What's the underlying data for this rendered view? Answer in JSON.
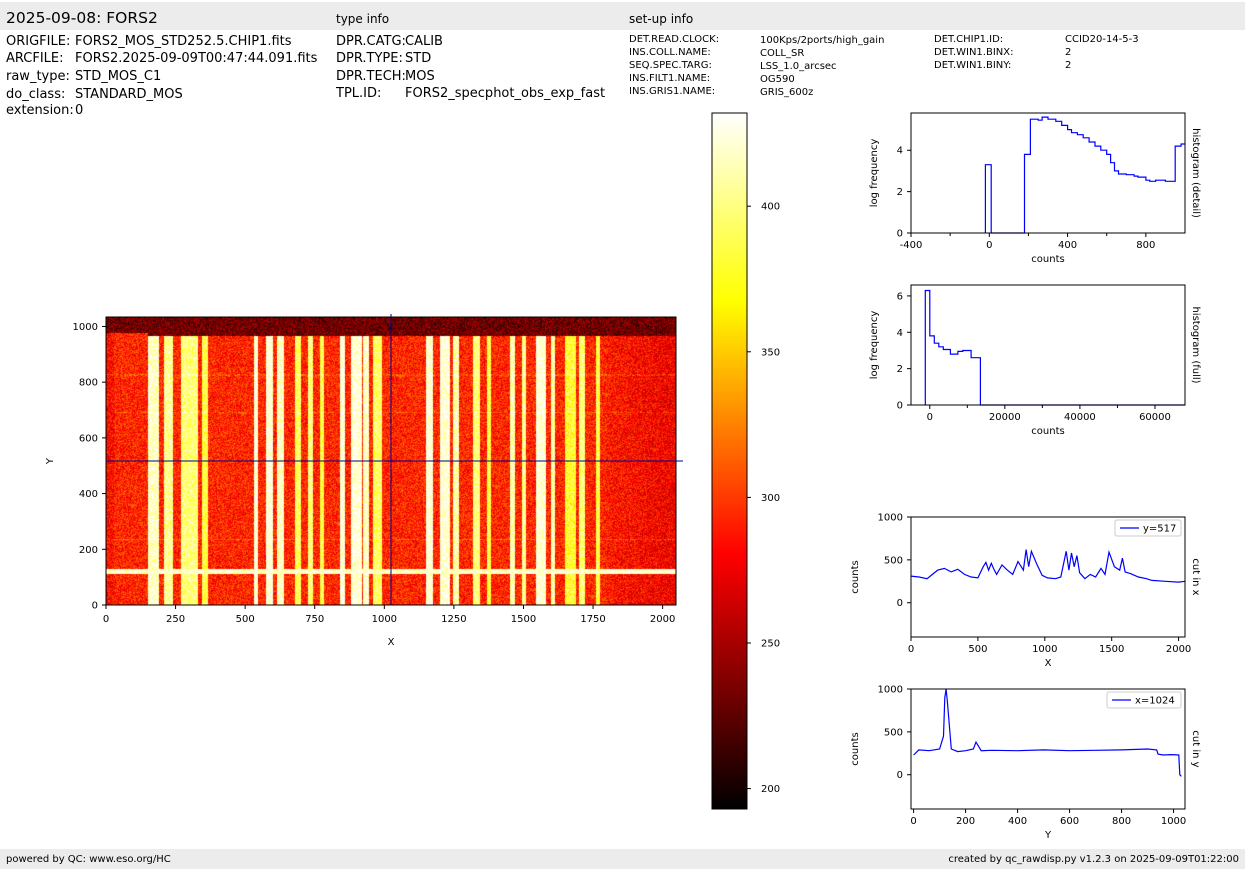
{
  "header": {
    "title": "2025-09-08: FORS2",
    "type_info_label": "type info",
    "setup_info_label": "set-up info"
  },
  "file_info": [
    {
      "key": "ORIGFILE:",
      "value": "FORS2_MOS_STD252.5.CHIP1.fits"
    },
    {
      "key": "ARCFILE:",
      "value": "FORS2.2025-09-09T00:47:44.091.fits"
    },
    {
      "key": "raw_type:",
      "value": "STD_MOS_C1"
    },
    {
      "key": "do_class:",
      "value": "STANDARD_MOS"
    },
    {
      "key": "extension:",
      "value": "0"
    }
  ],
  "type_info": [
    {
      "key": "DPR.CATG:",
      "value": "CALIB"
    },
    {
      "key": "DPR.TYPE:",
      "value": "STD"
    },
    {
      "key": "DPR.TECH:",
      "value": "MOS"
    },
    {
      "key": "TPL.ID:",
      "value": "FORS2_specphot_obs_exp_fast"
    }
  ],
  "setup_info_a": [
    {
      "key": "DET.READ.CLOCK:",
      "value": "100Kps/2ports/high_gain"
    },
    {
      "key": "INS.COLL.NAME:",
      "value": "COLL_SR"
    },
    {
      "key": "SEQ.SPEC.TARG:",
      "value": "LSS_1.0_arcsec"
    },
    {
      "key": "INS.FILT1.NAME:",
      "value": "OG590"
    },
    {
      "key": "INS.GRIS1.NAME:",
      "value": "GRIS_600z"
    }
  ],
  "setup_info_b": [
    {
      "key": "DET.CHIP1.ID:",
      "value": "CCID20-14-5-3"
    },
    {
      "key": "DET.WIN1.BINX:",
      "value": "2"
    },
    {
      "key": "DET.WIN1.BINY:",
      "value": "2"
    }
  ],
  "footer": {
    "left": "powered by QC: www.eso.org/HC",
    "right": "created by qc_rawdisp.py v1.2.3 on 2025-09-09T01:22:00"
  },
  "colors": {
    "line": "#0000ff",
    "crosshair": "#00008b",
    "header_bg": "#ececec"
  },
  "chart_data": [
    {
      "type": "heatmap",
      "name": "raw image",
      "xlabel": "X",
      "ylabel": "Y",
      "xlim": [
        0,
        2048
      ],
      "ylim": [
        0,
        1034
      ],
      "xticks": [
        0,
        250,
        500,
        750,
        1000,
        1250,
        1500,
        1750,
        2000
      ],
      "yticks": [
        0,
        200,
        400,
        600,
        800,
        1000
      ],
      "crosshair": {
        "x": 1024,
        "y": 517
      },
      "colormap": "hot",
      "bright_columns": [
        [
          150,
          190,
          0.95
        ],
        [
          210,
          240,
          0.85
        ],
        [
          270,
          330,
          0.8
        ],
        [
          345,
          365,
          0.7
        ],
        [
          530,
          545,
          1.0
        ],
        [
          575,
          600,
          1.0
        ],
        [
          615,
          640,
          0.95
        ],
        [
          680,
          700,
          0.75
        ],
        [
          725,
          745,
          0.8
        ],
        [
          770,
          785,
          0.7
        ],
        [
          840,
          860,
          1.0
        ],
        [
          880,
          920,
          1.0
        ],
        [
          925,
          945,
          0.95
        ],
        [
          960,
          990,
          0.75
        ],
        [
          1150,
          1175,
          1.0
        ],
        [
          1200,
          1235,
          1.0
        ],
        [
          1245,
          1270,
          0.9
        ],
        [
          1320,
          1345,
          0.8
        ],
        [
          1370,
          1385,
          0.7
        ],
        [
          1450,
          1470,
          0.9
        ],
        [
          1495,
          1510,
          0.85
        ],
        [
          1545,
          1580,
          1.0
        ],
        [
          1600,
          1615,
          0.9
        ],
        [
          1650,
          1690,
          0.65
        ],
        [
          1700,
          1720,
          0.8
        ],
        [
          1760,
          1775,
          0.7
        ]
      ]
    },
    {
      "type": "colorbar",
      "range": [
        193,
        432
      ],
      "ticks": [
        200,
        250,
        300,
        350,
        400
      ]
    },
    {
      "type": "line",
      "name": "histogram (detail)",
      "step": true,
      "xlabel": "counts",
      "ylabel": "log frequency",
      "xlim": [
        -400,
        1000
      ],
      "ylim": [
        0,
        5.8
      ],
      "xticks": [
        -400,
        0,
        400,
        800
      ],
      "yticks": [
        0,
        2,
        4
      ],
      "x": [
        -20,
        -20,
        10,
        10,
        180,
        180,
        210,
        210,
        250,
        250,
        270,
        270,
        300,
        300,
        340,
        340,
        370,
        370,
        400,
        400,
        420,
        420,
        450,
        450,
        480,
        480,
        510,
        510,
        540,
        540,
        570,
        570,
        600,
        600,
        620,
        620,
        640,
        640,
        660,
        660,
        700,
        700,
        740,
        740,
        760,
        760,
        800,
        800,
        820,
        820,
        850,
        850,
        900,
        900,
        950,
        950,
        980,
        980,
        1000
      ],
      "y": [
        0,
        3.3,
        3.3,
        0,
        0,
        3.8,
        3.8,
        5.5,
        5.5,
        5.45,
        5.45,
        5.6,
        5.6,
        5.5,
        5.5,
        5.4,
        5.4,
        5.2,
        5.2,
        5.0,
        5.0,
        4.85,
        4.85,
        4.75,
        4.75,
        4.6,
        4.6,
        4.4,
        4.4,
        4.2,
        4.2,
        4.0,
        4.0,
        3.8,
        3.8,
        3.4,
        3.4,
        3.0,
        3.0,
        2.85,
        2.85,
        2.82,
        2.82,
        2.75,
        2.75,
        2.7,
        2.7,
        2.55,
        2.55,
        2.5,
        2.5,
        2.55,
        2.55,
        2.5,
        2.5,
        4.2,
        4.2,
        4.3,
        4.3
      ]
    },
    {
      "type": "line",
      "name": "histogram (full)",
      "step": true,
      "xlabel": "counts",
      "ylabel": "log frequency",
      "xlim": [
        -5000,
        68000
      ],
      "ylim": [
        0,
        6.6
      ],
      "xticks": [
        0,
        20000,
        40000,
        60000
      ],
      "yticks": [
        0,
        2,
        4,
        6
      ],
      "x": [
        -1200,
        -1200,
        0,
        0,
        1200,
        1200,
        2400,
        2400,
        3600,
        3600,
        5500,
        5500,
        7500,
        7500,
        8800,
        8800,
        11000,
        11000,
        13500,
        13500,
        68000
      ],
      "y": [
        0,
        6.3,
        6.3,
        3.8,
        3.8,
        3.4,
        3.4,
        3.2,
        3.2,
        3.05,
        3.05,
        2.8,
        2.8,
        2.95,
        2.95,
        3.0,
        3.0,
        2.6,
        2.6,
        0,
        0
      ]
    },
    {
      "type": "line",
      "name": "cut in x",
      "legend": "y=517",
      "xlabel": "X",
      "ylabel": "counts",
      "xlim": [
        0,
        2048
      ],
      "ylim": [
        -400,
        1000
      ],
      "xticks": [
        0,
        500,
        1000,
        1500,
        2000
      ],
      "yticks": [
        0,
        500,
        1000
      ],
      "x": [
        0,
        60,
        120,
        160,
        200,
        250,
        300,
        350,
        400,
        450,
        500,
        540,
        560,
        580,
        600,
        620,
        640,
        680,
        720,
        760,
        800,
        840,
        860,
        880,
        900,
        940,
        980,
        1020,
        1080,
        1120,
        1160,
        1180,
        1200,
        1220,
        1240,
        1260,
        1300,
        1340,
        1380,
        1420,
        1450,
        1480,
        1520,
        1560,
        1580,
        1600,
        1640,
        1700,
        1760,
        1800,
        1900,
        2000,
        2048
      ],
      "y": [
        310,
        300,
        280,
        330,
        380,
        400,
        360,
        390,
        330,
        300,
        290,
        420,
        470,
        380,
        460,
        390,
        330,
        440,
        380,
        330,
        480,
        380,
        620,
        420,
        600,
        450,
        320,
        290,
        280,
        300,
        600,
        380,
        580,
        420,
        550,
        350,
        280,
        330,
        300,
        400,
        330,
        590,
        420,
        380,
        520,
        360,
        340,
        300,
        280,
        260,
        250,
        240,
        250
      ]
    },
    {
      "type": "line",
      "name": "cut in y",
      "legend": "x=1024",
      "xlabel": "Y",
      "ylabel": "counts",
      "xlim": [
        -10,
        1044
      ],
      "ylim": [
        -400,
        1000
      ],
      "xticks": [
        0,
        200,
        400,
        600,
        800,
        1000
      ],
      "yticks": [
        0,
        500,
        1000
      ],
      "x": [
        0,
        20,
        60,
        100,
        115,
        120,
        125,
        130,
        145,
        170,
        200,
        230,
        240,
        260,
        300,
        400,
        500,
        600,
        700,
        800,
        900,
        935,
        940,
        960,
        990,
        1020,
        1024,
        1030
      ],
      "y": [
        230,
        290,
        280,
        300,
        450,
        900,
        1000,
        850,
        300,
        270,
        280,
        300,
        380,
        280,
        285,
        280,
        290,
        280,
        285,
        290,
        300,
        290,
        240,
        230,
        235,
        230,
        0,
        -20
      ]
    }
  ]
}
